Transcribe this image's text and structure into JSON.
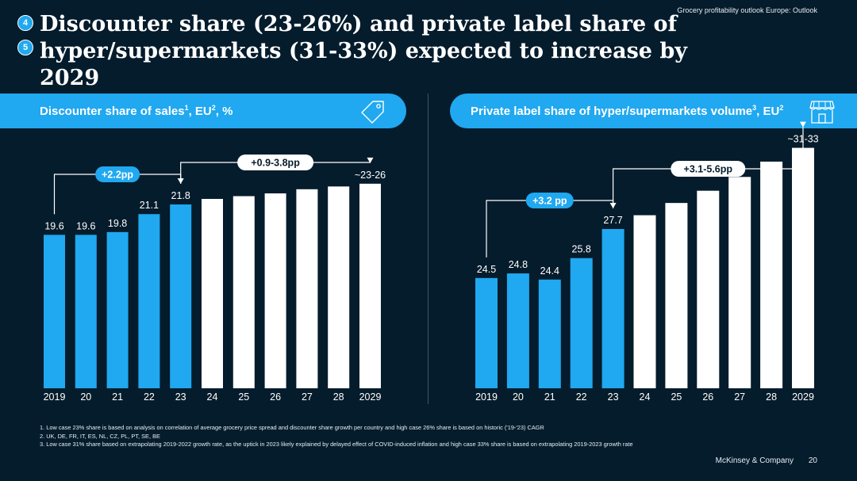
{
  "header": {
    "top_note": "Grocery profitability outlook Europe: Outlook",
    "badges": [
      "4",
      "5"
    ],
    "title_line1": "Discounter share (23-26%) and private label share of",
    "title_line2": "hyper/supermarkets (31-33%) expected to increase by 2029"
  },
  "colors": {
    "background": "#051c2c",
    "accent": "#20a8f0",
    "forecast_bar": "#ffffff"
  },
  "panels": [
    {
      "title": "Discounter share of sales",
      "sup1": "1",
      "mid": ", EU",
      "sup2": "2",
      "end": ", %",
      "icon": "price-tag-icon"
    },
    {
      "title": "Private label share of hyper/supermarkets volume",
      "sup1": "3",
      "mid": ", EU",
      "sup2": "2",
      "end": "",
      "icon": "store-icon"
    }
  ],
  "chart_data": [
    {
      "type": "bar",
      "categories": [
        "2019",
        "20",
        "21",
        "22",
        "23",
        "24",
        "25",
        "26",
        "27",
        "28",
        "2029"
      ],
      "values": [
        19.6,
        19.6,
        19.8,
        21.1,
        21.8,
        22.2,
        22.4,
        22.6,
        22.9,
        23.1,
        23.3
      ],
      "data_labels": [
        "19.6",
        "19.6",
        "19.8",
        "21.1",
        "21.8",
        "",
        "",
        "",
        "",
        "",
        "~23-26"
      ],
      "historical_count": 5,
      "annotations": [
        {
          "label": "+2.2pp",
          "from": 0,
          "to": 4
        },
        {
          "label": "+0.9-3.8pp",
          "from": 4,
          "to": 10
        }
      ]
    },
    {
      "type": "bar",
      "categories": [
        "2019",
        "20",
        "21",
        "22",
        "23",
        "24",
        "25",
        "26",
        "27",
        "28",
        "2029"
      ],
      "values": [
        24.5,
        24.8,
        24.4,
        25.8,
        27.7,
        28.6,
        29.4,
        30.2,
        31.1,
        32.1,
        33.0
      ],
      "data_labels": [
        "24.5",
        "24.8",
        "24.4",
        "25.8",
        "27.7",
        "",
        "",
        "",
        "",
        "",
        "~31-33"
      ],
      "historical_count": 5,
      "annotations": [
        {
          "label": "+3.2 pp",
          "from": 0,
          "to": 4
        },
        {
          "label": "+3.1-5.6pp",
          "from": 4,
          "to": 10
        }
      ]
    }
  ],
  "footnotes": [
    "1. Low case 23% share is based on analysis on correlation of average grocery price spread and discounter share growth per country and high case 26% share is based on historic ('19-'23) CAGR",
    "2. UK, DE, FR, IT, ES, NL, CZ, PL, PT, SE, BE",
    "3. Low case 31% share based on extrapolating 2019-2022 growth rate, as the uptick in 2023 likely explained by delayed effect of COVID-induced inflation and high case 33% share is based on extrapolating 2019-2023 growth rate"
  ],
  "footer": {
    "brand": "McKinsey & Company",
    "page": "20"
  }
}
